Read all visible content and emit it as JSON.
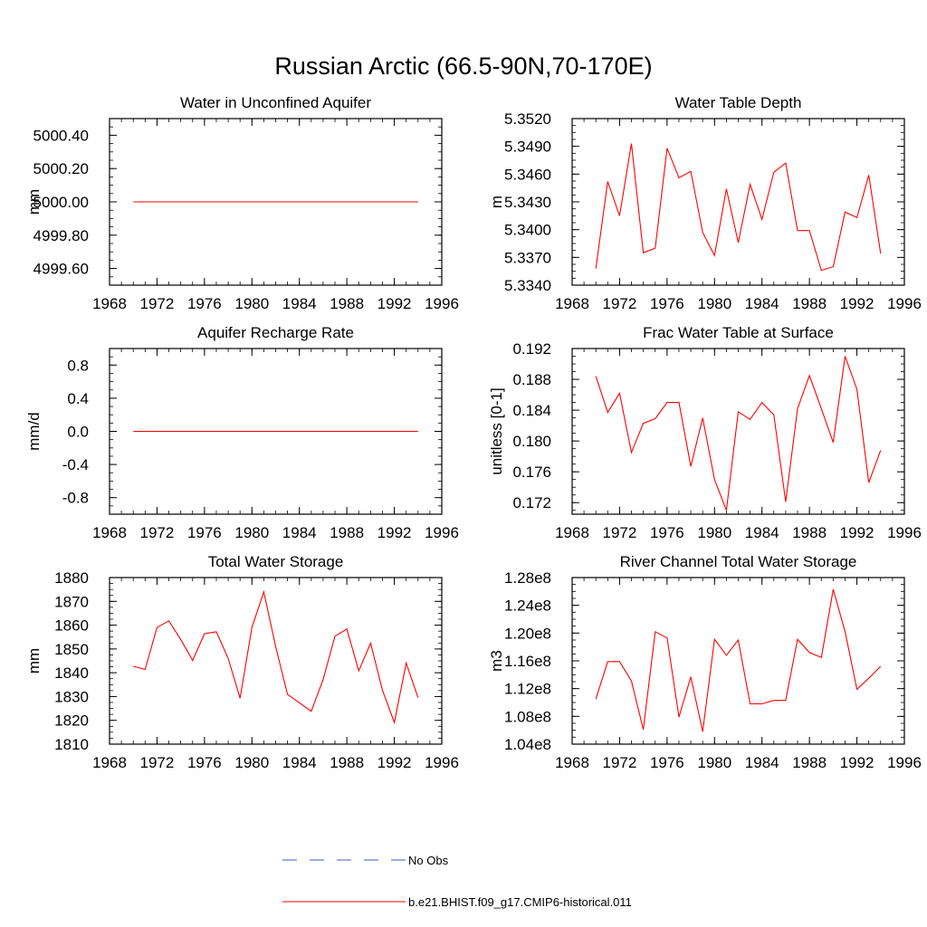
{
  "figure_title": "Russian Arctic (66.5-90N,70-170E)",
  "legend": {
    "placement": "bottom-center",
    "entries": [
      {
        "label": "No Obs",
        "color": "#3b5cc4",
        "style": "dashed"
      },
      {
        "label": "b.e21.BHIST.f09_g17.CMIP6-historical.011",
        "color": "#ff0000",
        "style": "solid"
      }
    ]
  },
  "chart_data": [
    {
      "type": "line",
      "title": "Water in Unconfined Aquifer",
      "ylabel": "mm",
      "xlim": [
        1968,
        1996
      ],
      "ylim": [
        4999.5,
        5000.5
      ],
      "xticks": [
        "1968",
        "1972",
        "1976",
        "1980",
        "1984",
        "1988",
        "1992",
        "1996"
      ],
      "yticks": [
        "4999.60",
        "4999.80",
        "5000.00",
        "5000.20",
        "5000.40"
      ],
      "x": [
        1970,
        1971,
        1972,
        1973,
        1974,
        1975,
        1976,
        1977,
        1978,
        1979,
        1980,
        1981,
        1982,
        1983,
        1984,
        1985,
        1986,
        1987,
        1988,
        1989,
        1990,
        1991,
        1992,
        1993,
        1994
      ],
      "series": [
        {
          "values": [
            5000,
            5000,
            5000,
            5000,
            5000,
            5000,
            5000,
            5000,
            5000,
            5000,
            5000,
            5000,
            5000,
            5000,
            5000,
            5000,
            5000,
            5000,
            5000,
            5000,
            5000,
            5000,
            5000,
            5000,
            5000
          ],
          "color": "#ff0000"
        }
      ]
    },
    {
      "type": "line",
      "title": "Water Table Depth",
      "ylabel": "m",
      "xlim": [
        1968,
        1996
      ],
      "ylim": [
        5.334,
        5.352
      ],
      "xticks": [
        "1968",
        "1972",
        "1976",
        "1980",
        "1984",
        "1988",
        "1992",
        "1996"
      ],
      "yticks": [
        "5.3340",
        "5.3370",
        "5.3400",
        "5.3430",
        "5.3460",
        "5.3490",
        "5.3520"
      ],
      "x": [
        1970,
        1971,
        1972,
        1973,
        1974,
        1975,
        1976,
        1977,
        1978,
        1979,
        1980,
        1981,
        1982,
        1983,
        1984,
        1985,
        1986,
        1987,
        1988,
        1989,
        1990,
        1991,
        1992,
        1993,
        1994
      ],
      "series": [
        {
          "values": [
            5.3358,
            5.3452,
            5.3415,
            5.3493,
            5.3375,
            5.338,
            5.3488,
            5.3456,
            5.3463,
            5.3397,
            5.3372,
            5.3444,
            5.3386,
            5.3449,
            5.3411,
            5.3462,
            5.3472,
            5.3399,
            5.3399,
            5.3356,
            5.336,
            5.3419,
            5.3413,
            5.3459,
            5.3374
          ],
          "color": "#ff0000"
        }
      ]
    },
    {
      "type": "line",
      "title": "Aquifer Recharge Rate",
      "ylabel": "mm/d",
      "xlim": [
        1968,
        1996
      ],
      "ylim": [
        -1.0,
        1.0
      ],
      "xticks": [
        "1968",
        "1972",
        "1976",
        "1980",
        "1984",
        "1988",
        "1992",
        "1996"
      ],
      "yticks": [
        "-0.8",
        "-0.4",
        "0.0",
        "0.4",
        "0.8"
      ],
      "x": [
        1970,
        1971,
        1972,
        1973,
        1974,
        1975,
        1976,
        1977,
        1978,
        1979,
        1980,
        1981,
        1982,
        1983,
        1984,
        1985,
        1986,
        1987,
        1988,
        1989,
        1990,
        1991,
        1992,
        1993,
        1994
      ],
      "series": [
        {
          "values": [
            0,
            0,
            0,
            0,
            0,
            0,
            0,
            0,
            0,
            0,
            0,
            0,
            0,
            0,
            0,
            0,
            0,
            0,
            0,
            0,
            0,
            0,
            0,
            0,
            0
          ],
          "color": "#ff0000"
        }
      ]
    },
    {
      "type": "line",
      "title": "Frac Water Table at Surface",
      "ylabel": "unitless [0-1]",
      "xlim": [
        1968,
        1996
      ],
      "ylim": [
        0.1705,
        0.192
      ],
      "xticks": [
        "1968",
        "1972",
        "1976",
        "1980",
        "1984",
        "1988",
        "1992",
        "1996"
      ],
      "yticks": [
        "0.172",
        "0.176",
        "0.180",
        "0.184",
        "0.188",
        "0.192"
      ],
      "x": [
        1970,
        1971,
        1972,
        1973,
        1974,
        1975,
        1976,
        1977,
        1978,
        1979,
        1980,
        1981,
        1982,
        1983,
        1984,
        1985,
        1986,
        1987,
        1988,
        1989,
        1990,
        1991,
        1992,
        1993,
        1994
      ],
      "series": [
        {
          "values": [
            0.1884,
            0.1837,
            0.1862,
            0.1785,
            0.1823,
            0.1829,
            0.185,
            0.185,
            0.1767,
            0.183,
            0.175,
            0.171,
            0.1838,
            0.1828,
            0.185,
            0.1834,
            0.1721,
            0.1842,
            0.1885,
            0.1842,
            0.1798,
            0.191,
            0.1867,
            0.1746,
            0.1788
          ],
          "color": "#ff0000"
        }
      ]
    },
    {
      "type": "line",
      "title": "Total Water Storage",
      "ylabel": "mm",
      "xlim": [
        1968,
        1996
      ],
      "ylim": [
        1810,
        1880
      ],
      "xticks": [
        "1968",
        "1972",
        "1976",
        "1980",
        "1984",
        "1988",
        "1992",
        "1996"
      ],
      "yticks": [
        "1810",
        "1820",
        "1830",
        "1840",
        "1850",
        "1860",
        "1870",
        "1880"
      ],
      "x": [
        1970,
        1971,
        1972,
        1973,
        1974,
        1975,
        1976,
        1977,
        1978,
        1979,
        1980,
        1981,
        1982,
        1983,
        1984,
        1985,
        1986,
        1987,
        1988,
        1989,
        1990,
        1991,
        1992,
        1993,
        1994
      ],
      "series": [
        {
          "values": [
            1842.7,
            1841.4,
            1859.0,
            1861.8,
            1854.0,
            1845.2,
            1856.4,
            1857.2,
            1846.0,
            1829.3,
            1859.1,
            1874.0,
            1851.0,
            1830.9,
            1827.4,
            1823.8,
            1837.1,
            1855.4,
            1858.4,
            1840.8,
            1852.4,
            1832.6,
            1819.1,
            1844.1,
            1829.5
          ],
          "color": "#ff0000"
        }
      ]
    },
    {
      "type": "line",
      "title": "River Channel Total Water Storage",
      "ylabel": "m3",
      "xlim": [
        1968,
        1996
      ],
      "ylim": [
        104000000,
        128000000
      ],
      "xticks": [
        "1968",
        "1972",
        "1976",
        "1980",
        "1984",
        "1988",
        "1992",
        "1996"
      ],
      "yticks": [
        "1.04e8",
        "1.08e8",
        "1.12e8",
        "1.16e8",
        "1.20e8",
        "1.24e8",
        "1.28e8"
      ],
      "x": [
        1970,
        1971,
        1972,
        1973,
        1974,
        1975,
        1976,
        1977,
        1978,
        1979,
        1980,
        1981,
        1982,
        1983,
        1984,
        1985,
        1986,
        1987,
        1988,
        1989,
        1990,
        1991,
        1992,
        1993,
        1994
      ],
      "series": [
        {
          "values": [
            110500000,
            115900000,
            115900000,
            113100000,
            106100000,
            120200000,
            119300000,
            107900000,
            113700000,
            105800000,
            119100000,
            116800000,
            119000000,
            109800000,
            109800000,
            110300000,
            110300000,
            119100000,
            117200000,
            116500000,
            126300000,
            120200000,
            111900000,
            113500000,
            115200000
          ],
          "color": "#ff0000"
        }
      ]
    }
  ]
}
